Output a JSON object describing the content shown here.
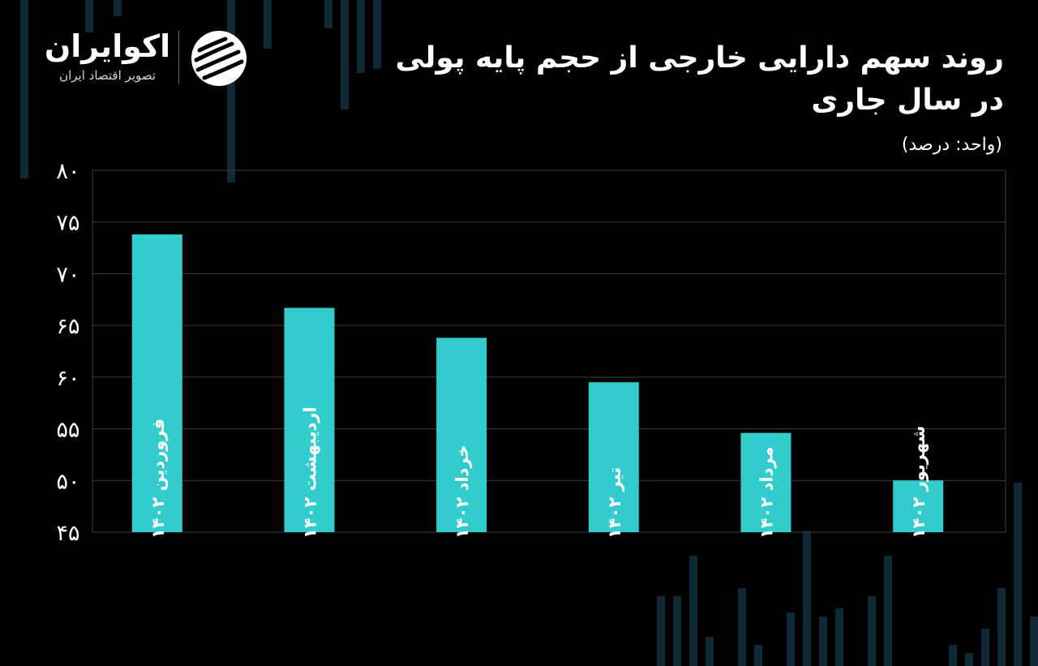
{
  "header": {
    "title": "روند سهم دارایی خارجی از حجم  پایه پولی\nدر سال جاری",
    "unit": "(واحد: درصد)"
  },
  "brand": {
    "name": "اکوایران",
    "tagline": "تصویر اقتصاد ایران",
    "logo_icon": "ecoiran-swirl-icon"
  },
  "colors": {
    "background": "#000000",
    "bar": "#33cccc",
    "grid": "#3a3f44",
    "text": "#ffffff",
    "deco": "#0f2a33"
  },
  "chart_data": {
    "type": "bar",
    "title": "روند سهم دارایی خارجی از حجم  پایه پولی در سال جاری",
    "subtitle": "(واحد: درصد)",
    "xlabel": "",
    "ylabel": "",
    "categories": [
      "فروردین ۱۴۰۲",
      "اردیبهشت ۱۴۰۲",
      "خرداد ۱۴۰۲",
      "تیر ۱۴۰۲",
      "مرداد ۱۴۰۲",
      "شهریور ۱۴۰۲"
    ],
    "values": [
      73.8,
      66.7,
      63.8,
      59.5,
      54.6,
      50.0
    ],
    "ylim": [
      45,
      80
    ],
    "yticks": [
      45,
      50,
      55,
      60,
      65,
      70,
      75,
      80
    ],
    "ytick_labels": [
      "۴۵",
      "۵۰",
      "۵۵",
      "۶۰",
      "۶۵",
      "۷۰",
      "۷۵",
      "۸۰"
    ],
    "grid": true,
    "legend": "none"
  }
}
